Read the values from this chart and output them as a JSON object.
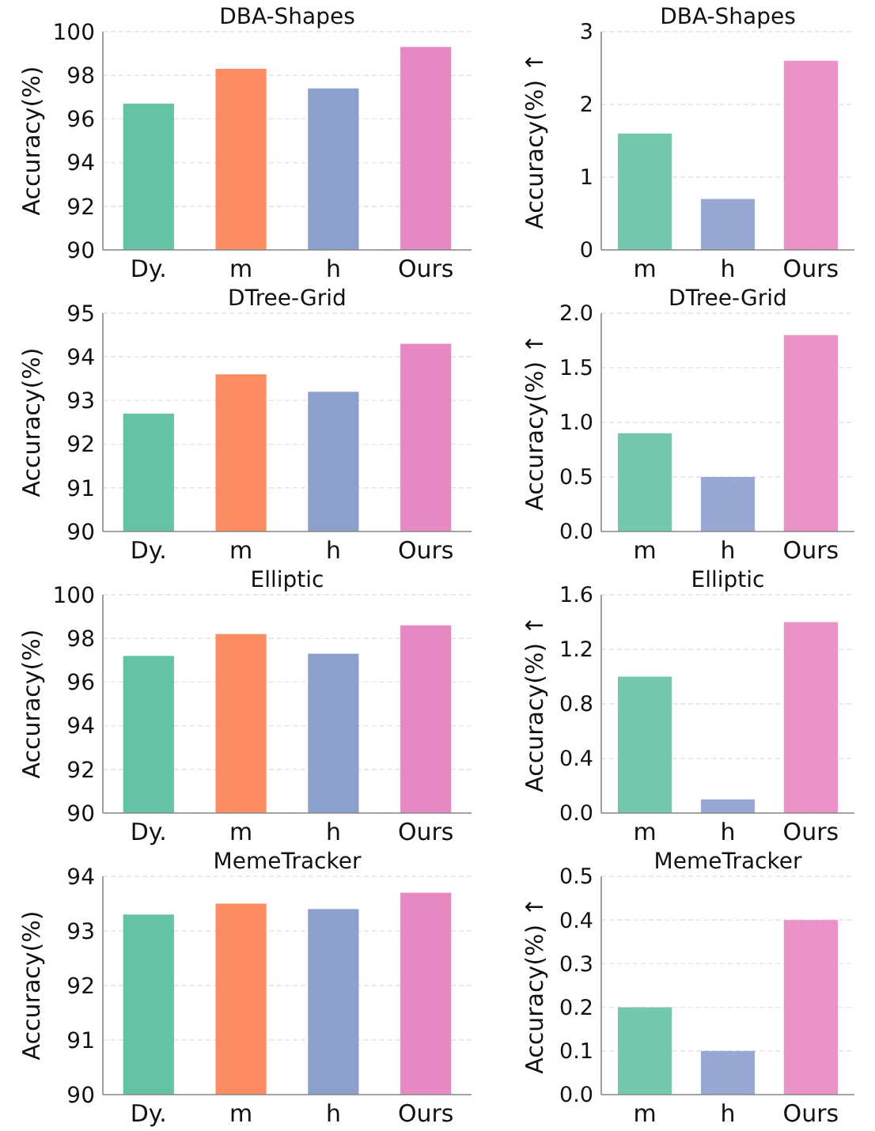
{
  "chart_data": [
    {
      "type": "bar",
      "title": "DBA-Shapes",
      "ylabel": "Accuracy(%)",
      "categories": [
        "Dy.",
        "m",
        "h",
        "Ours"
      ],
      "values": [
        96.7,
        98.3,
        97.4,
        99.3
      ],
      "colors": [
        "#66c2a5",
        "#fc8d62",
        "#8da0cb",
        "#e78ac3"
      ],
      "ylim": [
        90,
        100
      ],
      "yticks": [
        90,
        92,
        94,
        96,
        98,
        100
      ],
      "grid": "y"
    },
    {
      "type": "bar",
      "title": "DBA-Shapes",
      "ylabel": "Accuracy(%) ↑",
      "categories": [
        "m",
        "h",
        "Ours"
      ],
      "values": [
        1.6,
        0.7,
        2.6
      ],
      "colors": [
        "#75c8ad",
        "#97a8d2",
        "#ea93c9"
      ],
      "ylim": [
        0,
        3
      ],
      "yticks": [
        0,
        1,
        2,
        3
      ],
      "grid": "y"
    },
    {
      "type": "bar",
      "title": "DTree-Grid",
      "ylabel": "Accuracy(%)",
      "categories": [
        "Dy.",
        "m",
        "h",
        "Ours"
      ],
      "values": [
        92.7,
        93.6,
        93.2,
        94.3
      ],
      "colors": [
        "#66c2a5",
        "#fc8d62",
        "#8da0cb",
        "#e78ac3"
      ],
      "ylim": [
        90,
        95
      ],
      "yticks": [
        90,
        91,
        92,
        93,
        94,
        95
      ],
      "grid": "y"
    },
    {
      "type": "bar",
      "title": "DTree-Grid",
      "ylabel": "Accuracy(%) ↑",
      "categories": [
        "m",
        "h",
        "Ours"
      ],
      "values": [
        0.9,
        0.5,
        1.8
      ],
      "colors": [
        "#75c8ad",
        "#97a8d2",
        "#ea93c9"
      ],
      "ylim": [
        0,
        2
      ],
      "yticks": [
        {
          "value": 0,
          "label": "0.0"
        },
        0.5,
        {
          "value": 1,
          "label": "1.0"
        },
        1.5,
        {
          "value": 2,
          "label": "2.0"
        }
      ],
      "grid": "y"
    },
    {
      "type": "bar",
      "title": "Elliptic",
      "ylabel": "Accuracy(%)",
      "categories": [
        "Dy.",
        "m",
        "h",
        "Ours"
      ],
      "values": [
        97.2,
        98.2,
        97.3,
        98.6
      ],
      "colors": [
        "#66c2a5",
        "#fc8d62",
        "#8da0cb",
        "#e78ac3"
      ],
      "ylim": [
        90,
        100
      ],
      "yticks": [
        90,
        92,
        94,
        96,
        98,
        100
      ],
      "grid": "y"
    },
    {
      "type": "bar",
      "title": "Elliptic",
      "ylabel": "Accuracy(%) ↑",
      "categories": [
        "m",
        "h",
        "Ours"
      ],
      "values": [
        1.0,
        0.1,
        1.4
      ],
      "colors": [
        "#75c8ad",
        "#97a8d2",
        "#ea93c9"
      ],
      "ylim": [
        0,
        1.6
      ],
      "yticks": [
        {
          "value": 0,
          "label": "0.0"
        },
        0.4,
        0.8,
        1.2,
        1.6
      ],
      "grid": "y"
    },
    {
      "type": "bar",
      "title": "MemeTracker",
      "ylabel": "Accuracy(%)",
      "categories": [
        "Dy.",
        "m",
        "h",
        "Ours"
      ],
      "values": [
        93.3,
        93.5,
        93.4,
        93.7
      ],
      "colors": [
        "#66c2a5",
        "#fc8d62",
        "#8da0cb",
        "#e78ac3"
      ],
      "ylim": [
        90,
        94
      ],
      "yticks": [
        90,
        91,
        92,
        93,
        94
      ],
      "grid": "y"
    },
    {
      "type": "bar",
      "title": "MemeTracker",
      "ylabel": "Accuracy(%) ↑",
      "categories": [
        "m",
        "h",
        "Ours"
      ],
      "values": [
        0.2,
        0.1,
        0.4
      ],
      "colors": [
        "#75c8ad",
        "#97a8d2",
        "#ea93c9"
      ],
      "ylim": [
        0,
        0.5
      ],
      "yticks": [
        {
          "value": 0,
          "label": "0.0"
        },
        0.1,
        0.2,
        0.3,
        0.4,
        0.5
      ],
      "grid": "y"
    }
  ]
}
